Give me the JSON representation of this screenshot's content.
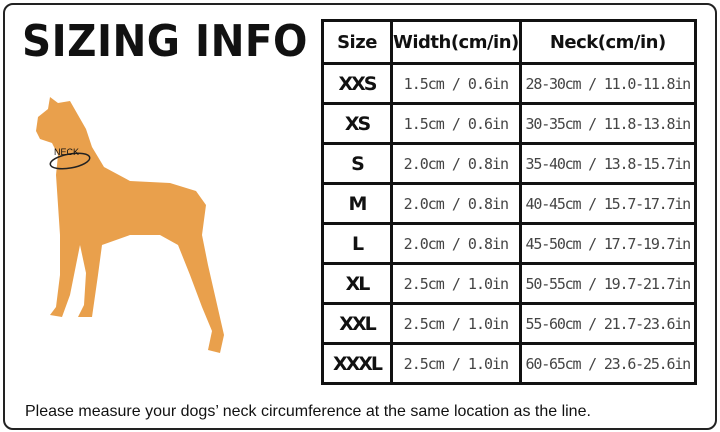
{
  "title": "SIZING INFO",
  "illustration": {
    "neck_label": "NECK",
    "dog_color": "#E9A04C"
  },
  "table": {
    "headers": [
      "Size",
      "Width(cm/in)",
      "Neck(cm/in)"
    ],
    "rows": [
      {
        "size": "XXS",
        "width": "1.5cm / 0.6in",
        "neck": "28-30cm / 11.0-11.8in"
      },
      {
        "size": "XS",
        "width": "1.5cm / 0.6in",
        "neck": "30-35cm / 11.8-13.8in"
      },
      {
        "size": "S",
        "width": "2.0cm / 0.8in",
        "neck": "35-40cm / 13.8-15.7in"
      },
      {
        "size": "M",
        "width": "2.0cm / 0.8in",
        "neck": "40-45cm / 15.7-17.7in"
      },
      {
        "size": "L",
        "width": "2.0cm / 0.8in",
        "neck": "45-50cm / 17.7-19.7in"
      },
      {
        "size": "XL",
        "width": "2.5cm / 1.0in",
        "neck": "50-55cm / 19.7-21.7in"
      },
      {
        "size": "XXL",
        "width": "2.5cm / 1.0in",
        "neck": "55-60cm / 21.7-23.6in"
      },
      {
        "size": "XXXL",
        "width": "2.5cm / 1.0in",
        "neck": "60-65cm / 23.6-25.6in"
      }
    ]
  },
  "note": "Please measure your dogs’  neck circumference at the same location as the line."
}
